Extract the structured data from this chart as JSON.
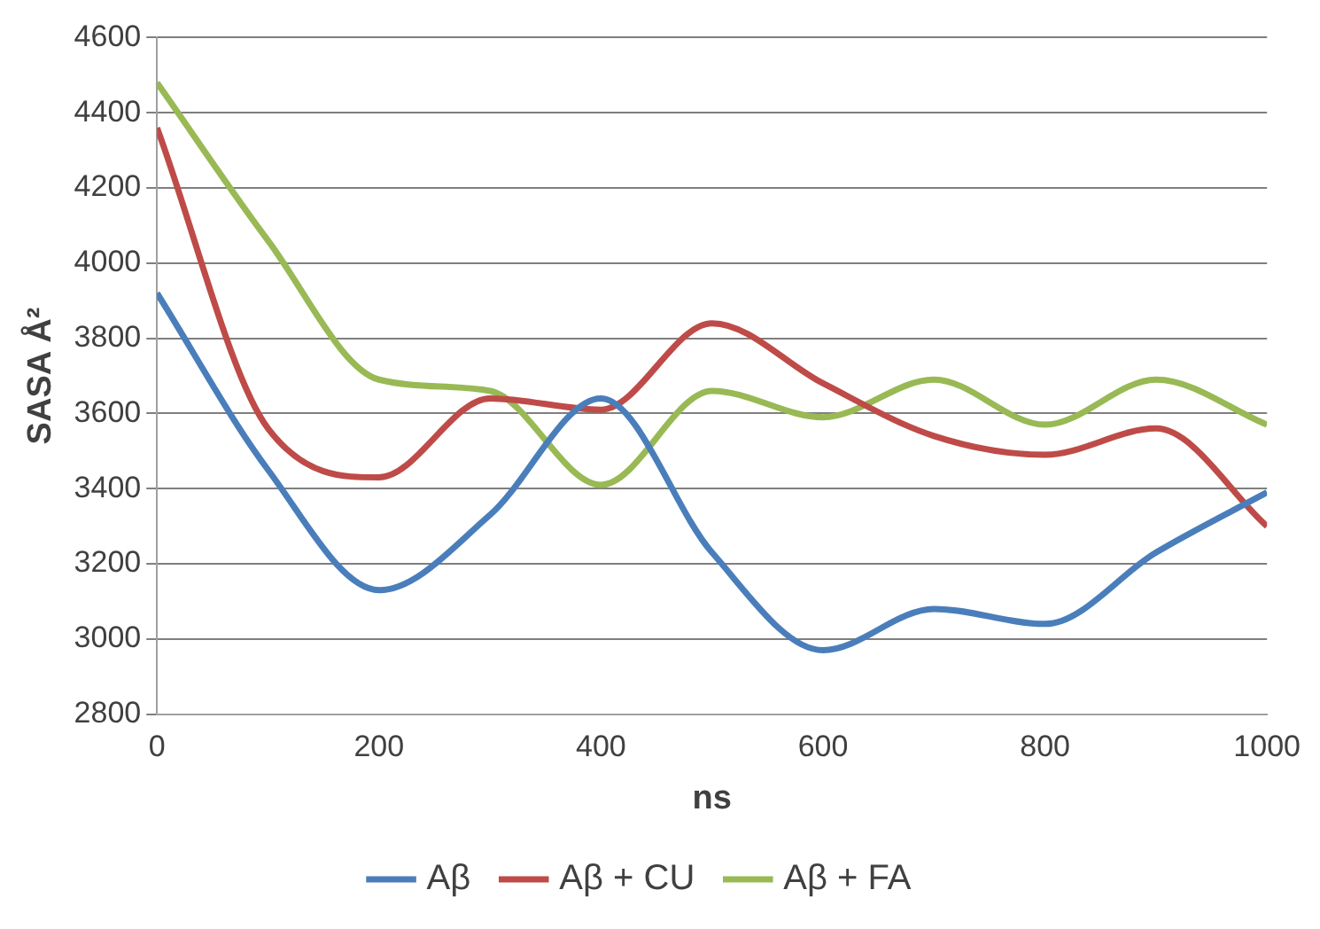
{
  "chart_data": {
    "type": "line",
    "xlabel": "ns",
    "ylabel": "SASA Å²",
    "x": [
      0,
      100,
      200,
      300,
      400,
      500,
      600,
      700,
      800,
      900,
      1000
    ],
    "series": [
      {
        "name": "Aβ",
        "color": "#4a7ebb",
        "values": [
          3920,
          3450,
          3130,
          3330,
          3640,
          3230,
          2970,
          3080,
          3040,
          3230,
          3390
        ]
      },
      {
        "name": "Aβ + CU",
        "color": "#be4b48",
        "values": [
          4360,
          3560,
          3430,
          3640,
          3610,
          3840,
          3680,
          3540,
          3490,
          3560,
          3300
        ]
      },
      {
        "name": "Aβ + FA",
        "color": "#98b954",
        "values": [
          4480,
          4060,
          3690,
          3660,
          3410,
          3660,
          3590,
          3690,
          3570,
          3690,
          3570
        ]
      }
    ],
    "xlim": [
      0,
      1000
    ],
    "xticks": [
      0,
      200,
      400,
      600,
      800,
      1000
    ],
    "ylim": [
      2800,
      4600
    ],
    "yticks": [
      2800,
      3000,
      3200,
      3400,
      3600,
      3800,
      4000,
      4200,
      4400,
      4600
    ],
    "grid": "y",
    "legend": "bottom",
    "marker": "none",
    "line_style": "solid"
  }
}
